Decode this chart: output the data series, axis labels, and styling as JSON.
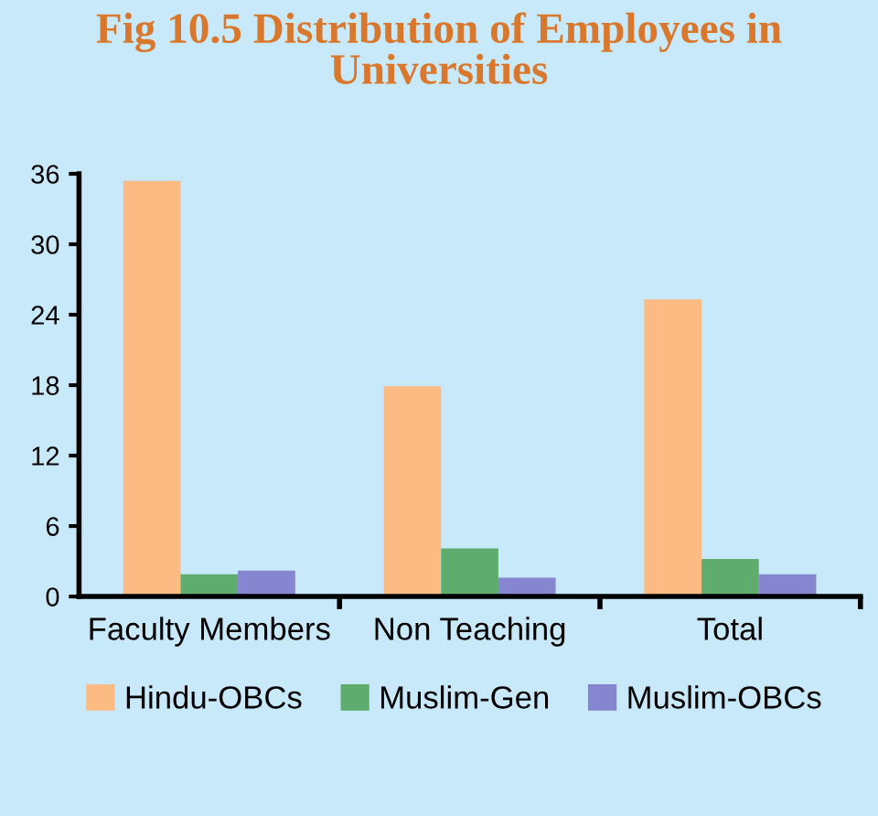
{
  "chart_data": {
    "type": "bar",
    "title": "Fig 10.5 Distribution of Employees in\nUniversities",
    "categories": [
      "Faculty Members",
      "Non Teaching",
      "Total"
    ],
    "series": [
      {
        "name": "Hindu-OBCs",
        "color": "#fdbb84",
        "values": [
          35.4,
          17.9,
          25.3
        ]
      },
      {
        "name": "Muslim-Gen",
        "color": "#5fad6e",
        "values": [
          1.9,
          4.1,
          3.2
        ]
      },
      {
        "name": "Muslim-OBCs",
        "color": "#8585d0",
        "values": [
          2.2,
          1.6,
          1.9
        ]
      }
    ],
    "ylim": [
      0,
      36
    ],
    "yticks": [
      0,
      6,
      12,
      18,
      24,
      30,
      36
    ],
    "grid": false,
    "legend": "bottom"
  }
}
